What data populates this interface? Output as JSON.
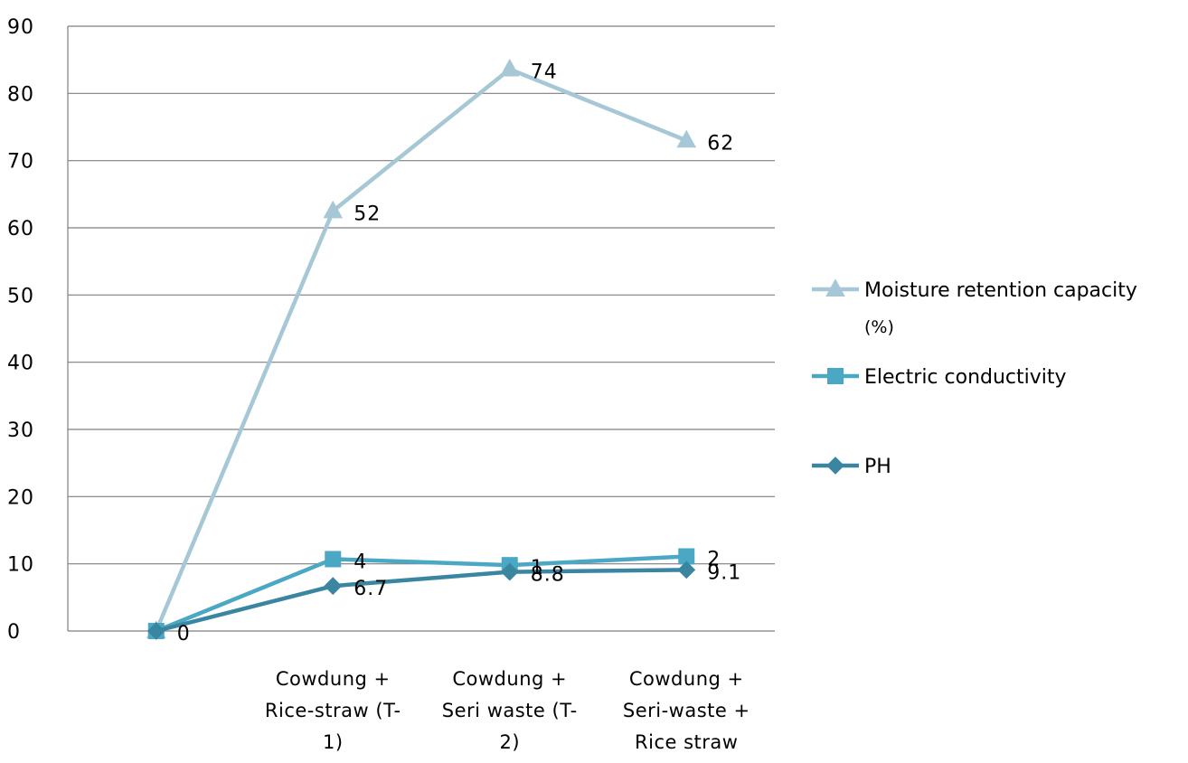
{
  "chart_data": {
    "type": "line",
    "categories": [
      "",
      "Cowdung + Rice-straw (T- 1)",
      "Cowdung + Seri waste (T- 2)",
      "Cowdung + Seri-waste + Rice straw"
    ],
    "category_lines": [
      [],
      [
        "Cowdung +",
        "Rice-straw (T-",
        "1)"
      ],
      [
        "Cowdung +",
        "Seri waste (T-",
        "2)"
      ],
      [
        "Cowdung +",
        "Seri-waste +",
        "Rice straw"
      ]
    ],
    "ylim": [
      0,
      90
    ],
    "yticks": [
      0,
      10,
      20,
      30,
      40,
      50,
      60,
      70,
      80,
      90
    ],
    "grid": true,
    "legend_position": "right",
    "series": [
      {
        "name": "Moisture retention capacity (%)",
        "legend_lines": [
          "Moisture retention capacity",
          "(%)"
        ],
        "values": [
          0,
          62.5,
          83.6,
          73
        ],
        "labels": [
          "",
          "52",
          "74",
          "62"
        ],
        "color": "#a6c7d6",
        "marker": "triangle"
      },
      {
        "name": "Electric conductivity",
        "legend_lines": [
          "Electric conductivity"
        ],
        "values": [
          0,
          10.7,
          9.8,
          11.1
        ],
        "labels": [
          "",
          "4",
          "1",
          "2"
        ],
        "color": "#4aa8c4",
        "marker": "square"
      },
      {
        "name": "PH",
        "legend_lines": [
          "PH"
        ],
        "values": [
          0,
          6.7,
          8.8,
          9.1
        ],
        "labels": [
          "0",
          "6.7",
          "8.8",
          "9.1"
        ],
        "color": "#3a86a0",
        "marker": "diamond"
      }
    ]
  }
}
